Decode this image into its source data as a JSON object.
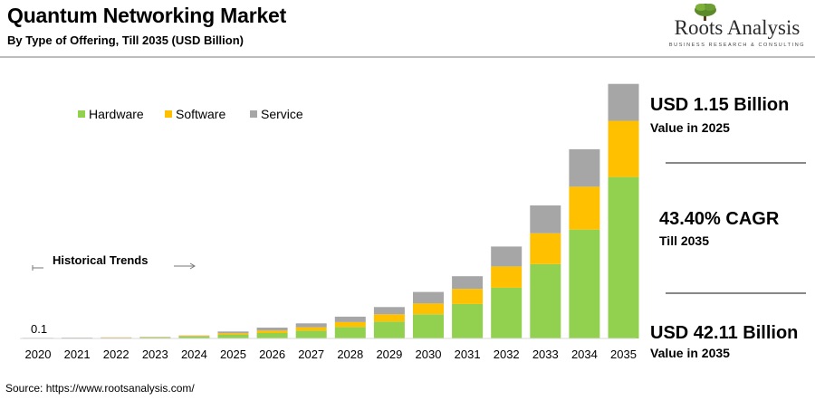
{
  "header": {
    "title": "Quantum Networking Market",
    "subtitle": "By Type of Offering, Till 2035 (USD Billion)"
  },
  "logo": {
    "name": "Roots Analysis",
    "tagline": "BUSINESS RESEARCH & CONSULTING"
  },
  "colors": {
    "hardware": "#92D050",
    "software": "#FFC000",
    "service": "#A6A6A6"
  },
  "chart_data": {
    "type": "bar",
    "stacked": true,
    "title": "Quantum Networking Market",
    "subtitle": "By Type of Offering, Till 2035 (USD Billion)",
    "categories": [
      "2020",
      "2021",
      "2022",
      "2023",
      "2024",
      "2025",
      "2026",
      "2027",
      "2028",
      "2029",
      "2030",
      "2031",
      "2032",
      "2033",
      "2034",
      "2035"
    ],
    "series": [
      {
        "name": "Hardware",
        "values": [
          0.06,
          0.08,
          0.11,
          0.15,
          0.3,
          0.6,
          0.9,
          1.3,
          1.9,
          2.8,
          4.0,
          5.7,
          8.4,
          12.3,
          18.0,
          26.7
        ]
      },
      {
        "name": "Software",
        "values": [
          0.02,
          0.03,
          0.04,
          0.06,
          0.12,
          0.25,
          0.4,
          0.55,
          0.8,
          1.2,
          1.8,
          2.5,
          3.5,
          5.1,
          7.1,
          9.3
        ]
      },
      {
        "name": "Service",
        "values": [
          0.02,
          0.02,
          0.03,
          0.04,
          0.08,
          0.3,
          0.5,
          0.65,
          0.9,
          1.2,
          1.9,
          2.1,
          3.3,
          4.6,
          6.2,
          6.1
        ]
      }
    ],
    "legend": [
      "Hardware",
      "Software",
      "Service"
    ],
    "legend_position": "top-left",
    "ylim": [
      0,
      44
    ],
    "annotations": {
      "start_value": "0.1",
      "historical_label": "Historical Trends"
    }
  },
  "stats": [
    {
      "value": "USD 1.15 Billion",
      "label": "Value in 2025"
    },
    {
      "value": "43.40% CAGR",
      "label": "Till 2035"
    },
    {
      "value": "USD 42.11 Billion",
      "label": "Value in 2035"
    }
  ],
  "source": "Source: https://www.rootsanalysis.com/"
}
